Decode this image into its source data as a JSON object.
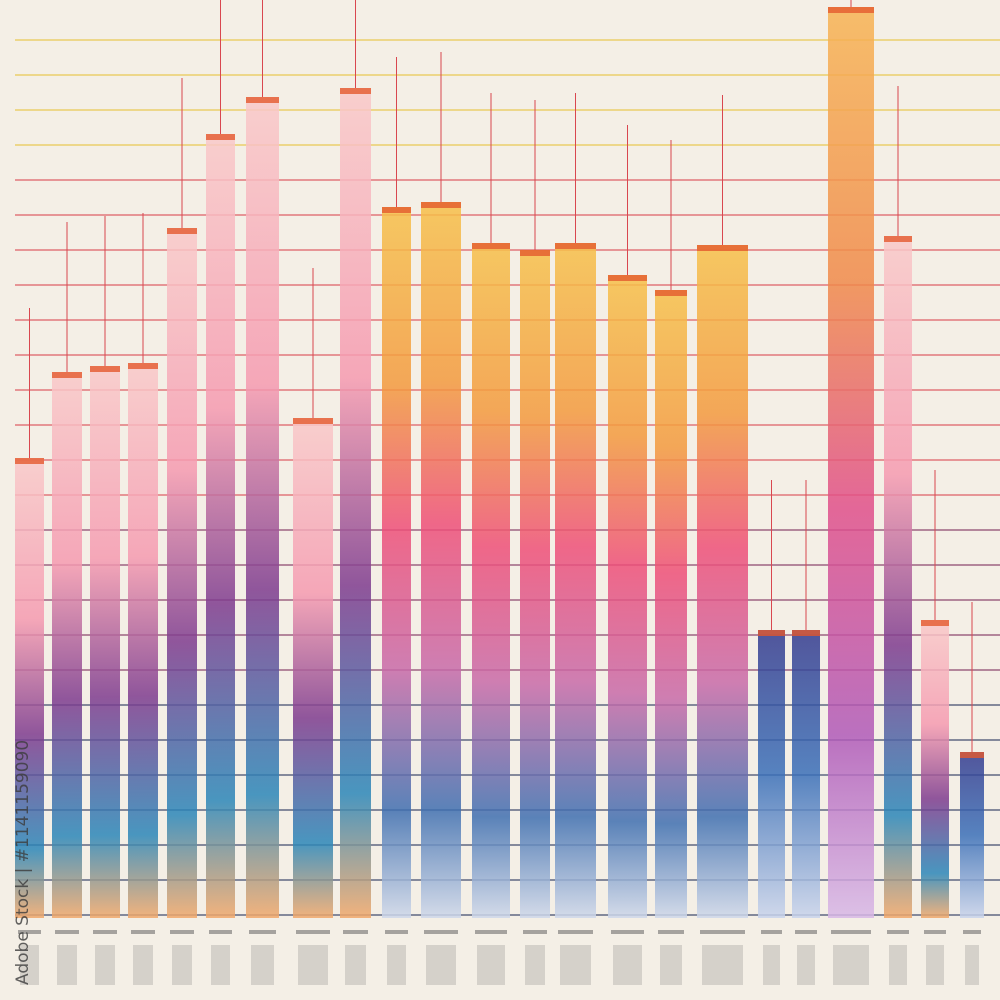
{
  "watermark": "Adobe Stock | #1141159090"
}
